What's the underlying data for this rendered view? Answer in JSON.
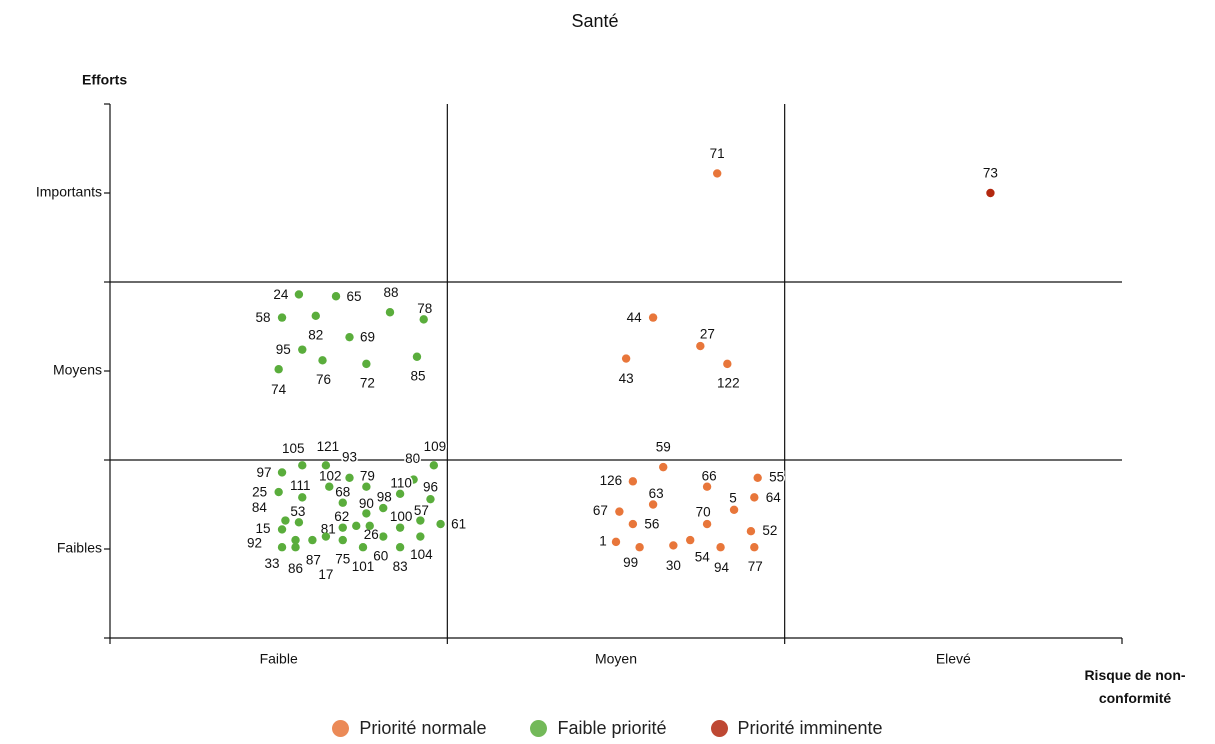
{
  "chart_data": {
    "type": "scatter",
    "title": "Santé",
    "y_label": "Efforts",
    "x_label": "Risque de non-conformité",
    "xlim": [
      0,
      3
    ],
    "ylim": [
      0,
      3
    ],
    "xticks": [
      {
        "value": 0.5,
        "label": "Faible"
      },
      {
        "value": 1.5,
        "label": "Moyen"
      },
      {
        "value": 2.5,
        "label": "Elevé"
      }
    ],
    "yticks": [
      {
        "value": 0.5,
        "label": "Faibles"
      },
      {
        "value": 1.5,
        "label": "Moyens"
      },
      {
        "value": 2.5,
        "label": "Importants"
      }
    ],
    "xgrid": [
      1,
      2
    ],
    "ygrid": [
      1,
      2
    ],
    "series": [
      {
        "name": "Priorité normale",
        "color": "#e8763a",
        "labels": [
          "71",
          "44",
          "27",
          "43",
          "122",
          "59",
          "126",
          "66",
          "55",
          "63",
          "5",
          "64",
          "67",
          "56",
          "70",
          "52",
          "1",
          "99",
          "30",
          "54",
          "94",
          "77"
        ],
        "x": [
          1.8,
          1.61,
          1.75,
          1.53,
          1.83,
          1.64,
          1.55,
          1.77,
          1.92,
          1.61,
          1.85,
          1.91,
          1.51,
          1.55,
          1.77,
          1.9,
          1.5,
          1.57,
          1.67,
          1.72,
          1.81,
          1.91
        ],
        "values": [
          2.61,
          1.8,
          1.64,
          1.57,
          1.54,
          0.96,
          0.88,
          0.85,
          0.9,
          0.75,
          0.72,
          0.79,
          0.71,
          0.64,
          0.64,
          0.6,
          0.54,
          0.51,
          0.52,
          0.55,
          0.51,
          0.51
        ]
      },
      {
        "name": "Faible priorité",
        "color": "#5aad3c",
        "labels": [
          "24",
          "65",
          "88",
          "58",
          "78",
          "82",
          "69",
          "95",
          "74",
          "76",
          "72",
          "85",
          "105",
          "121",
          "93",
          "109",
          "80",
          "97",
          "25",
          "111",
          "102",
          "68",
          "79",
          "110",
          "96",
          "98",
          "90",
          "84",
          "53",
          "62",
          "100",
          "57",
          "61",
          "15",
          "81",
          "26",
          "92",
          "33",
          "86",
          "87",
          "17",
          "75",
          "101",
          "60",
          "83",
          "104"
        ],
        "x": [
          0.56,
          0.67,
          0.83,
          0.51,
          0.93,
          0.61,
          0.71,
          0.57,
          0.5,
          0.63,
          0.76,
          0.91,
          0.57,
          0.64,
          0.71,
          0.96,
          0.9,
          0.51,
          0.5,
          0.57,
          0.65,
          0.69,
          0.76,
          0.86,
          0.95,
          0.81,
          0.76,
          0.52,
          0.56,
          0.69,
          0.86,
          0.92,
          0.98,
          0.51,
          0.73,
          0.81,
          0.55,
          0.51,
          0.55,
          0.6,
          0.64,
          0.69,
          0.75,
          0.77,
          0.86,
          0.92
        ],
        "values": [
          1.93,
          1.92,
          1.83,
          1.8,
          1.79,
          1.81,
          1.69,
          1.62,
          1.51,
          1.56,
          1.54,
          1.58,
          0.97,
          0.97,
          0.9,
          0.97,
          0.89,
          0.93,
          0.82,
          0.79,
          0.85,
          0.76,
          0.85,
          0.81,
          0.78,
          0.73,
          0.7,
          0.66,
          0.65,
          0.62,
          0.62,
          0.66,
          0.64,
          0.61,
          0.63,
          0.57,
          0.55,
          0.51,
          0.51,
          0.55,
          0.57,
          0.55,
          0.51,
          0.63,
          0.51,
          0.57
        ]
      },
      {
        "name": "Priorité imminente",
        "color": "#b3280f",
        "labels": [
          "73"
        ],
        "x": [
          2.61
        ],
        "values": [
          2.5
        ]
      }
    ]
  }
}
